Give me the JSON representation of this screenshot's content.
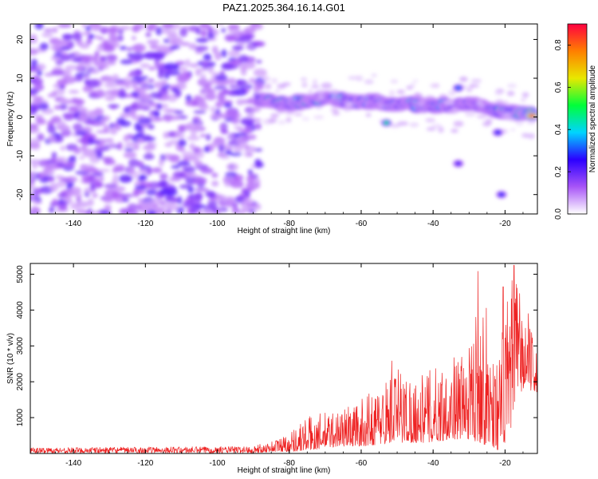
{
  "figure": {
    "title": "PAZ1.2025.364.16.14.G01"
  },
  "chart_data": [
    {
      "type": "heatmap",
      "xlabel": "Height of straight line (km)",
      "ylabel": "Frequency (Hz)",
      "xlim": [
        -152,
        -11
      ],
      "ylim": [
        -25,
        24
      ],
      "xticks": [
        -140,
        -120,
        -100,
        -80,
        -60,
        -40,
        -20
      ],
      "yticks": [
        -20,
        -10,
        0,
        10,
        20
      ],
      "noise_region": {
        "x_range": [
          -152,
          -88
        ],
        "y_range": [
          -25,
          24
        ]
      },
      "signal_band": [
        {
          "x": -88,
          "y": 4.5,
          "amp": 0.35
        },
        {
          "x": -84,
          "y": 4.0,
          "amp": 0.7
        },
        {
          "x": -80,
          "y": 3.5,
          "amp": 0.5
        },
        {
          "x": -76,
          "y": 4.0,
          "amp": 0.65
        },
        {
          "x": -72,
          "y": 4.5,
          "amp": 0.55
        },
        {
          "x": -68,
          "y": 5.0,
          "amp": 0.5
        },
        {
          "x": -64,
          "y": 4.0,
          "amp": 0.45
        },
        {
          "x": -60,
          "y": 4.0,
          "amp": 0.55
        },
        {
          "x": -56,
          "y": 4.0,
          "amp": 0.4
        },
        {
          "x": -52,
          "y": 3.5,
          "amp": 0.5
        },
        {
          "x": -48,
          "y": 3.5,
          "amp": 0.55
        },
        {
          "x": -44,
          "y": 3.0,
          "amp": 0.5
        },
        {
          "x": -40,
          "y": 3.0,
          "amp": 0.45
        },
        {
          "x": -36,
          "y": 3.0,
          "amp": 0.5
        },
        {
          "x": -32,
          "y": 3.5,
          "amp": 0.45
        },
        {
          "x": -28,
          "y": 3.0,
          "amp": 0.4
        },
        {
          "x": -24,
          "y": 1.5,
          "amp": 0.5
        },
        {
          "x": -20,
          "y": 1.5,
          "amp": 0.6
        },
        {
          "x": -16,
          "y": 1.0,
          "amp": 0.8
        },
        {
          "x": -12,
          "y": 1.0,
          "amp": 0.95
        }
      ],
      "extra_blobs": [
        {
          "x": -53,
          "y": -1.5,
          "amp": 0.45
        },
        {
          "x": -33,
          "y": -12.0,
          "amp": 0.2
        },
        {
          "x": -21,
          "y": -20.0,
          "amp": 0.25
        },
        {
          "x": -33,
          "y": 7.5,
          "amp": 0.3
        },
        {
          "x": -22,
          "y": -4.0,
          "amp": 0.25
        }
      ],
      "colorbar": {
        "label": "Normalized spectral amplitude",
        "range": [
          0.0,
          0.9
        ],
        "ticks": [
          "0.0",
          "0.2",
          "0.4",
          "0.6",
          "0.8"
        ],
        "colormap": [
          "#ffffff",
          "#a855f7",
          "#2b00ff",
          "#00d4ff",
          "#00ff3a",
          "#e8e800",
          "#ff7f00",
          "#ff0040"
        ]
      }
    },
    {
      "type": "line",
      "xlabel": "Height of straight line (km)",
      "ylabel": "SNR (10 * v/v)",
      "xlim": [
        -152,
        -11
      ],
      "ylim": [
        0,
        5300
      ],
      "xticks": [
        -140,
        -120,
        -100,
        -80,
        -60,
        -40,
        -20
      ],
      "yticks": [
        1000,
        2000,
        3000,
        4000,
        5000
      ],
      "color": "#ee2222",
      "envelope": [
        {
          "x": -152,
          "lo": 0,
          "hi": 160
        },
        {
          "x": -90,
          "lo": 0,
          "hi": 200
        },
        {
          "x": -85,
          "lo": 50,
          "hi": 350
        },
        {
          "x": -80,
          "lo": 50,
          "hi": 600
        },
        {
          "x": -75,
          "lo": 80,
          "hi": 1050
        },
        {
          "x": -70,
          "lo": 150,
          "hi": 1150
        },
        {
          "x": -65,
          "lo": 200,
          "hi": 1300
        },
        {
          "x": -60,
          "lo": 200,
          "hi": 1500
        },
        {
          "x": -55,
          "lo": 250,
          "hi": 1900
        },
        {
          "x": -50,
          "lo": 300,
          "hi": 2500
        },
        {
          "x": -45,
          "lo": 300,
          "hi": 2100
        },
        {
          "x": -40,
          "lo": 300,
          "hi": 2400
        },
        {
          "x": -35,
          "lo": 400,
          "hi": 2700
        },
        {
          "x": -30,
          "lo": 400,
          "hi": 2900
        },
        {
          "x": -27,
          "lo": 300,
          "hi": 4900
        },
        {
          "x": -22,
          "lo": 100,
          "hi": 2600
        },
        {
          "x": -19,
          "lo": 300,
          "hi": 4600
        },
        {
          "x": -17,
          "lo": 1600,
          "hi": 5100
        },
        {
          "x": -14,
          "lo": 1800,
          "hi": 3700
        },
        {
          "x": -11,
          "lo": 1700,
          "hi": 3000
        }
      ],
      "peaks": [
        {
          "x": -27.5,
          "y": 5080
        },
        {
          "x": -17.5,
          "y": 5250
        },
        {
          "x": -20.5,
          "y": 4650
        },
        {
          "x": -13.5,
          "y": 3900
        },
        {
          "x": -51.5,
          "y": 2580
        }
      ]
    }
  ]
}
